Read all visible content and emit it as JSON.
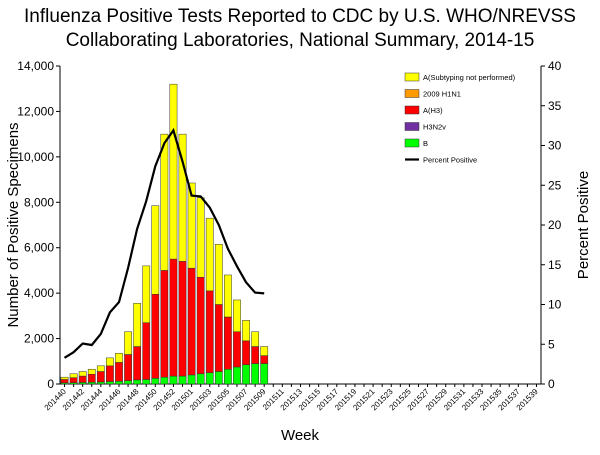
{
  "chart_data": {
    "type": "bar",
    "stacked": true,
    "title": [
      "Influenza Positive Tests Reported to CDC by U.S. WHO/NREVSS",
      "Collaborating Laboratories, National Summary, 2014-15"
    ],
    "xlabel": "Week",
    "ylabel": "Number of Positive Specimens",
    "y2label": "Percent Positive",
    "categories": [
      "201440",
      null,
      "201442",
      null,
      "201444",
      null,
      "201446",
      null,
      "201448",
      null,
      "201450",
      null,
      "201452",
      null,
      "201501",
      null,
      "201503",
      null,
      "201505",
      null,
      "201507",
      null,
      "201509",
      null,
      "201511",
      null,
      "201513",
      null,
      "201515",
      null,
      "201517",
      null,
      "201519",
      null,
      "201521",
      null,
      "201523",
      null,
      "201525",
      null,
      "201527",
      null,
      "201529",
      null,
      "201531",
      null,
      "201533",
      null,
      "201535",
      null,
      "201537",
      null,
      "201539"
    ],
    "ylim": [
      0,
      14000
    ],
    "yticks": [
      0,
      {
        "value": 2000,
        "label": "2,000"
      },
      {
        "value": 4000,
        "label": "4,000"
      },
      {
        "value": 6000,
        "label": "6,000"
      },
      {
        "value": 8000,
        "label": "8,000"
      },
      {
        "value": 10000,
        "label": "10,000"
      },
      {
        "value": 12000,
        "label": "12,000"
      },
      {
        "value": 14000,
        "label": "14,000"
      }
    ],
    "y2lim": [
      0,
      40
    ],
    "y2ticks": [
      0,
      5,
      10,
      15,
      20,
      25,
      30,
      35,
      40
    ],
    "legend": "top-right",
    "series": [
      {
        "name": "A(Subtyping not performed)",
        "color": "#ffff00",
        "values": [
          100,
          170,
          200,
          220,
          250,
          350,
          400,
          1000,
          1900,
          2500,
          3900,
          6000,
          7700,
          5600,
          3750,
          3500,
          3200,
          2650,
          1850,
          1400,
          900,
          650,
          400,
          null,
          null,
          null,
          null,
          null,
          null,
          null,
          null,
          null,
          null,
          null,
          null,
          null,
          null,
          null,
          null,
          null,
          null,
          null,
          null,
          null,
          null,
          null,
          null,
          null,
          null,
          null,
          null,
          null,
          null
        ]
      },
      {
        "name": "2009 H1N1",
        "color": "#ff9900",
        "values": [
          0,
          0,
          0,
          0,
          0,
          0,
          0,
          0,
          0,
          0,
          0,
          0,
          0,
          0,
          0,
          0,
          0,
          0,
          0,
          0,
          0,
          0,
          0,
          null,
          null,
          null,
          null,
          null,
          null,
          null,
          null,
          null,
          null,
          null,
          null,
          null,
          null,
          null,
          null,
          null,
          null,
          null,
          null,
          null,
          null,
          null,
          null,
          null,
          null,
          null,
          null,
          null,
          null
        ]
      },
      {
        "name": "A(H3)",
        "color": "#ff0000",
        "values": [
          150,
          220,
          280,
          350,
          460,
          690,
          830,
          1150,
          1470,
          2500,
          3700,
          4700,
          5150,
          5050,
          4700,
          4250,
          3600,
          2950,
          2300,
          1550,
          1050,
          750,
          350,
          null,
          null,
          null,
          null,
          null,
          null,
          null,
          null,
          null,
          null,
          null,
          null,
          null,
          null,
          null,
          null,
          null,
          null,
          null,
          null,
          null,
          null,
          null,
          null,
          null,
          null,
          null,
          null,
          null,
          null
        ]
      },
      {
        "name": "H3N2v",
        "color": "#7030a0",
        "values": [
          0,
          0,
          0,
          0,
          0,
          0,
          0,
          0,
          0,
          0,
          0,
          0,
          0,
          0,
          0,
          0,
          0,
          0,
          0,
          0,
          0,
          0,
          0,
          null,
          null,
          null,
          null,
          null,
          null,
          null,
          null,
          null,
          null,
          null,
          null,
          null,
          null,
          null,
          null,
          null,
          null,
          null,
          null,
          null,
          null,
          null,
          null,
          null,
          null,
          null,
          null,
          null,
          null
        ]
      },
      {
        "name": "B",
        "color": "#00ff00",
        "values": [
          50,
          60,
          70,
          80,
          90,
          110,
          120,
          150,
          180,
          200,
          250,
          300,
          350,
          350,
          400,
          450,
          500,
          550,
          650,
          750,
          850,
          900,
          900,
          null,
          null,
          null,
          null,
          null,
          null,
          null,
          null,
          null,
          null,
          null,
          null,
          null,
          null,
          null,
          null,
          null,
          null,
          null,
          null,
          null,
          null,
          null,
          null,
          null,
          null,
          null,
          null,
          null,
          null
        ]
      },
      {
        "name": "Percent Positive",
        "color": "#000000",
        "axis": "y2",
        "values": [
          3.3,
          4.0,
          5.1,
          4.9,
          6.3,
          9.0,
          10.3,
          14.6,
          19.5,
          23.0,
          27.4,
          30.3,
          31.9,
          28.0,
          23.7,
          23.6,
          22.2,
          20.0,
          17.0,
          14.8,
          12.8,
          11.5,
          11.4,
          null,
          null,
          null,
          null,
          null,
          null,
          null,
          null,
          null,
          null,
          null,
          null,
          null,
          null,
          null,
          null,
          null,
          null,
          null,
          null,
          null,
          null,
          null,
          null,
          null,
          null,
          null,
          null,
          null,
          null
        ]
      }
    ]
  }
}
